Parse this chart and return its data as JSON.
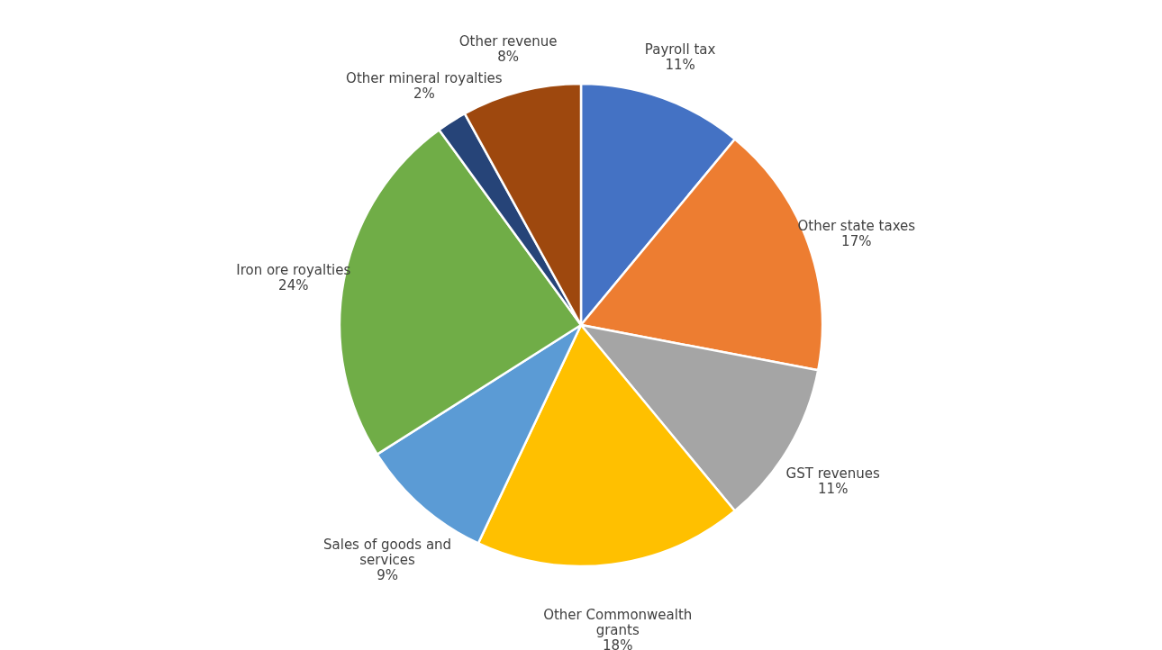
{
  "chart_data": {
    "type": "pie",
    "categories": [
      "Payroll tax",
      "Other state taxes",
      "GST revenues",
      "Other Commonwealth grants",
      "Sales of goods and services",
      "Iron ore royalties",
      "Other mineral royalties",
      "Other revenue"
    ],
    "values": [
      11,
      17,
      11,
      18,
      9,
      24,
      2,
      8
    ],
    "colors": [
      "#4472c4",
      "#ed7d31",
      "#a5a5a5",
      "#ffc000",
      "#5b9bd5",
      "#70ad47",
      "#264478",
      "#9e480e"
    ],
    "value_labels": [
      "11%",
      "17%",
      "11%",
      "18%",
      "9%",
      "24%",
      "2%",
      "8%"
    ]
  }
}
